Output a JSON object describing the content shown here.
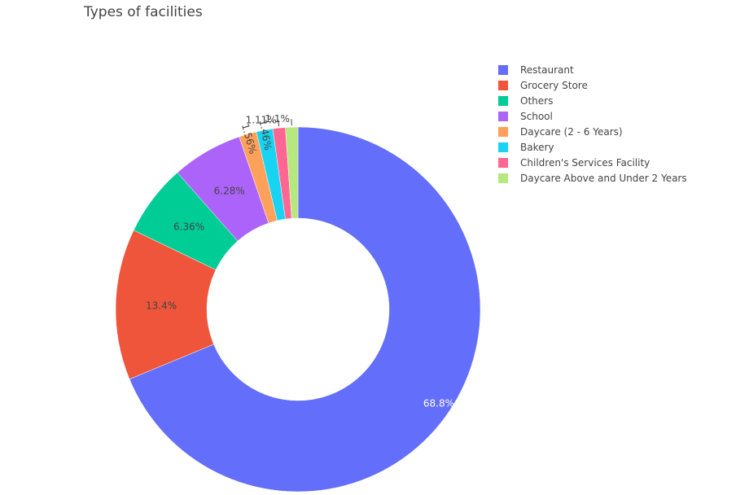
{
  "chart_data": {
    "type": "pie",
    "hole": true,
    "title": "Types of facilities",
    "legend_position": "top-right",
    "slices": [
      {
        "label": "Restaurant",
        "value": 68.8,
        "text": "68.8%",
        "color": "#636efa"
      },
      {
        "label": "Grocery Store",
        "value": 13.4,
        "text": "13.4%",
        "color": "#ef553b"
      },
      {
        "label": "Others",
        "value": 6.36,
        "text": "6.36%",
        "color": "#00cc96"
      },
      {
        "label": "School",
        "value": 6.28,
        "text": "6.28%",
        "color": "#ab63fa"
      },
      {
        "label": "Daycare (2 - 6 Years)",
        "value": 1.56,
        "text": "1.56%",
        "color": "#ffa15a"
      },
      {
        "label": "Bakery",
        "value": 1.46,
        "text": "1.46%",
        "color": "#19d3f3"
      },
      {
        "label": "Children's Services Facility",
        "value": 1.11,
        "text": "1.11%",
        "color": "#ff6692"
      },
      {
        "label": "Daycare Above and Under 2 Years",
        "value": 1.1,
        "text": "1.1%",
        "color": "#b6e880"
      }
    ]
  }
}
